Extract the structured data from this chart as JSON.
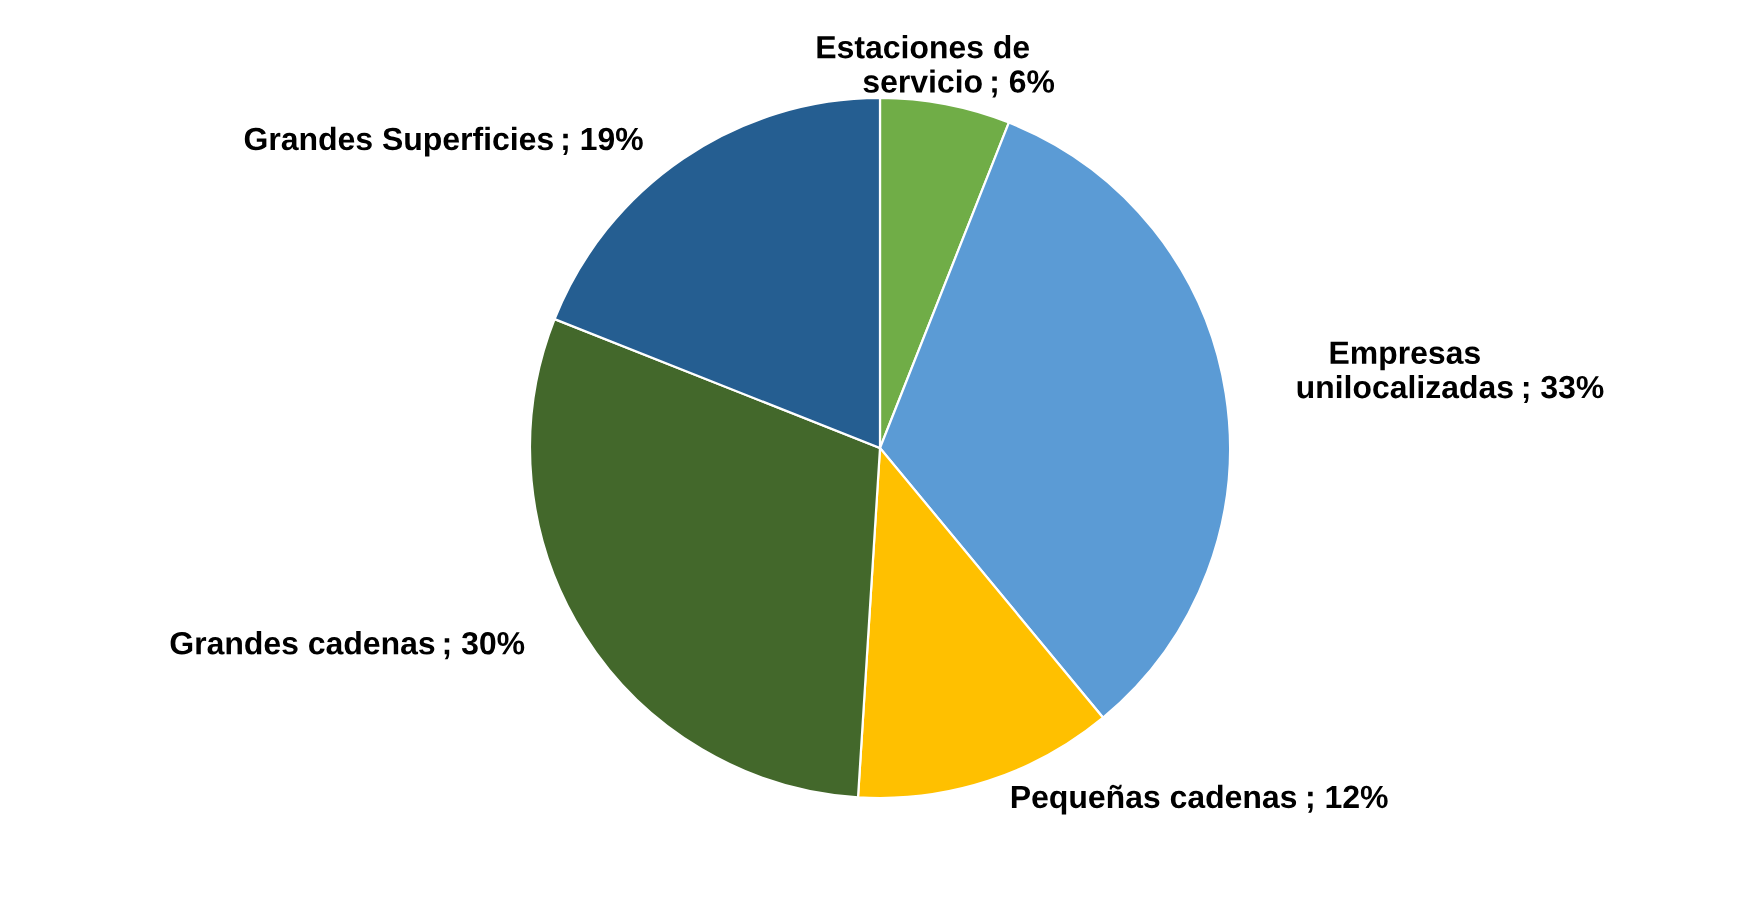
{
  "chart_data": {
    "type": "pie",
    "categories": [
      "Estaciones de servicio",
      "Empresas unilocalizadas",
      "Pequeñas cadenas",
      "Grandes cadenas",
      "Grandes Superficies"
    ],
    "values": [
      6,
      33,
      12,
      30,
      19
    ],
    "colors": [
      "#70ad47",
      "#5b9bd5",
      "#ffc000",
      "#43682b",
      "#255e91"
    ],
    "value_labels": [
      "; 6%",
      "; 33%",
      "; 12%",
      "; 30%",
      "; 19%"
    ]
  }
}
